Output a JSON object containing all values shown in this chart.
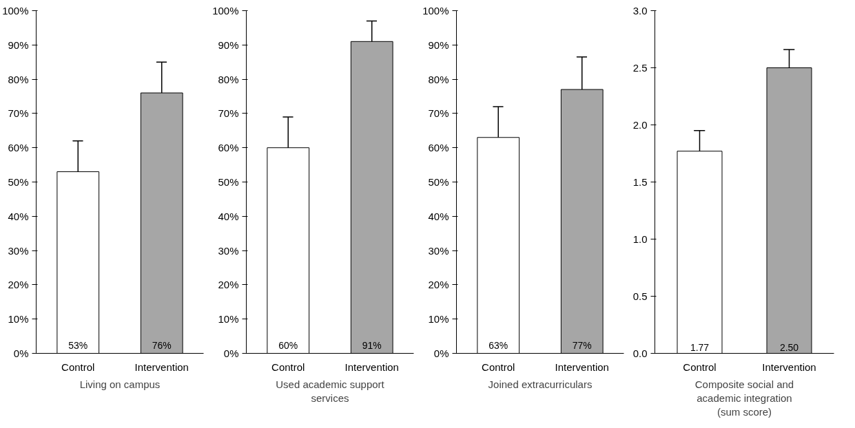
{
  "chart_data": [
    {
      "type": "bar",
      "xlabel": "Living on campus",
      "categories": [
        "Control",
        "Intervention"
      ],
      "values": [
        53,
        76
      ],
      "colors": [
        "#ffffff",
        "#a6a6a6"
      ],
      "errors": [
        [
          53,
          62
        ],
        [
          76,
          85
        ]
      ],
      "value_labels": [
        "53%",
        "76%"
      ],
      "ylim": [
        0,
        100
      ],
      "yticks": [
        {
          "value": 0,
          "label": "0%"
        },
        {
          "value": 10,
          "label": "10%"
        },
        {
          "value": 20,
          "label": "20%"
        },
        {
          "value": 30,
          "label": "30%"
        },
        {
          "value": 40,
          "label": "40%"
        },
        {
          "value": 50,
          "label": "50%"
        },
        {
          "value": 60,
          "label": "60%"
        },
        {
          "value": 70,
          "label": "70%"
        },
        {
          "value": 80,
          "label": "80%"
        },
        {
          "value": 90,
          "label": "90%"
        },
        {
          "value": 100,
          "label": "100%"
        }
      ],
      "grid": false
    },
    {
      "type": "bar",
      "xlabel": "Used academic support services",
      "categories": [
        "Control",
        "Intervention"
      ],
      "values": [
        60,
        91
      ],
      "colors": [
        "#ffffff",
        "#a6a6a6"
      ],
      "errors": [
        [
          60,
          69
        ],
        [
          91,
          97
        ]
      ],
      "value_labels": [
        "60%",
        "91%"
      ],
      "ylim": [
        0,
        100
      ],
      "yticks": [
        {
          "value": 0,
          "label": "0%"
        },
        {
          "value": 10,
          "label": "10%"
        },
        {
          "value": 20,
          "label": "20%"
        },
        {
          "value": 30,
          "label": "30%"
        },
        {
          "value": 40,
          "label": "40%"
        },
        {
          "value": 50,
          "label": "50%"
        },
        {
          "value": 60,
          "label": "60%"
        },
        {
          "value": 70,
          "label": "70%"
        },
        {
          "value": 80,
          "label": "80%"
        },
        {
          "value": 90,
          "label": "90%"
        },
        {
          "value": 100,
          "label": "100%"
        }
      ],
      "grid": false
    },
    {
      "type": "bar",
      "xlabel": "Joined extracurriculars",
      "categories": [
        "Control",
        "Intervention"
      ],
      "values": [
        63,
        77
      ],
      "colors": [
        "#ffffff",
        "#a6a6a6"
      ],
      "errors": [
        [
          63,
          72
        ],
        [
          77,
          86.5
        ]
      ],
      "value_labels": [
        "63%",
        "77%"
      ],
      "ylim": [
        0,
        100
      ],
      "yticks": [
        {
          "value": 0,
          "label": "0%"
        },
        {
          "value": 10,
          "label": "10%"
        },
        {
          "value": 20,
          "label": "20%"
        },
        {
          "value": 30,
          "label": "30%"
        },
        {
          "value": 40,
          "label": "40%"
        },
        {
          "value": 50,
          "label": "50%"
        },
        {
          "value": 60,
          "label": "60%"
        },
        {
          "value": 70,
          "label": "70%"
        },
        {
          "value": 80,
          "label": "80%"
        },
        {
          "value": 90,
          "label": "90%"
        },
        {
          "value": 100,
          "label": "100%"
        }
      ],
      "grid": false
    },
    {
      "type": "bar",
      "xlabel": "Composite social and academic integration (sum score)",
      "categories": [
        "Control",
        "Intervention"
      ],
      "values": [
        1.77,
        2.5
      ],
      "colors": [
        "#ffffff",
        "#a6a6a6"
      ],
      "errors": [
        [
          1.77,
          1.95
        ],
        [
          2.5,
          2.66
        ]
      ],
      "value_labels": [
        "1.77",
        "2.50"
      ],
      "ylim": [
        0,
        3
      ],
      "yticks": [
        {
          "value": 0,
          "label": "0.0"
        },
        {
          "value": 0.5,
          "label": "0.5"
        },
        {
          "value": 1,
          "label": "1.0"
        },
        {
          "value": 1.5,
          "label": "1.5"
        },
        {
          "value": 2,
          "label": "2.0"
        },
        {
          "value": 2.5,
          "label": "2.5"
        },
        {
          "value": 3,
          "label": "3.0"
        }
      ],
      "grid": false
    }
  ]
}
